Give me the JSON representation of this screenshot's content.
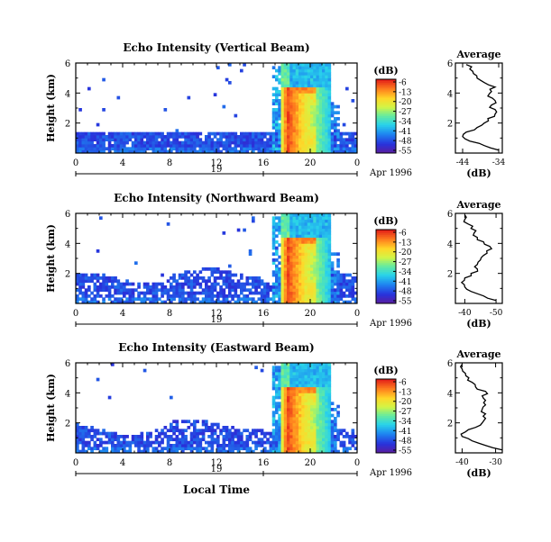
{
  "figure": {
    "date_label": "Apr 1996",
    "day_label": "19",
    "xlabel_bottom": "Local Time",
    "avg_title": "Average",
    "avg_xlabel": "(dB)",
    "colorbar_unit": "(dB)",
    "ylabel": "Height (km)"
  },
  "chart_data": [
    {
      "type": "heatmap",
      "title": "Echo Intensity (Vertical Beam)",
      "xlabel": "",
      "ylabel": "Height (km)",
      "x_ticks": [
        "0",
        "4",
        "8",
        "12",
        "16",
        "20",
        "0"
      ],
      "x_tick_values": [
        0,
        4,
        8,
        12,
        16,
        20,
        24
      ],
      "y_ticks": [
        "2",
        "4",
        "6"
      ],
      "y_tick_values": [
        2,
        4,
        6
      ],
      "xlim": [
        0,
        24
      ],
      "ylim": [
        0,
        6
      ],
      "colorbar": {
        "label": "(dB)",
        "ticks": [
          "-6",
          "-13",
          "-20",
          "-27",
          "-34",
          "-41",
          "-48",
          "-55"
        ],
        "values": [
          -6,
          -13,
          -20,
          -27,
          -34,
          -41,
          -48,
          -55
        ]
      },
      "features": {
        "low_layer_top_km": 1.4,
        "strong_echo_start_h": 17.4,
        "strong_echo_end_h": 21.8,
        "melting_layer_km": 4.2
      },
      "average_profile": {
        "title": "Average",
        "xlabel": "(dB)",
        "x_ticks": [
          "-44",
          "-34"
        ],
        "x_tick_values": [
          -44,
          -34
        ],
        "xlim": [
          -46,
          -33
        ],
        "y_ticks": [
          "2",
          "4",
          "6"
        ],
        "ylim": [
          0,
          6
        ],
        "height_km": [
          0.2,
          0.5,
          0.8,
          1.1,
          1.4,
          1.7,
          2.0,
          2.3,
          2.6,
          2.9,
          3.2,
          3.5,
          3.8,
          4.1,
          4.4,
          4.7,
          5.0,
          5.3,
          5.6,
          5.9
        ],
        "db": [
          -34,
          -38,
          -42,
          -44,
          -43,
          -40,
          -38,
          -37,
          -35,
          -35,
          -36,
          -35,
          -37,
          -36,
          -35,
          -38,
          -40,
          -41,
          -42,
          -43
        ]
      }
    },
    {
      "type": "heatmap",
      "title": "Echo Intensity (Northward Beam)",
      "xlabel": "",
      "ylabel": "Height (km)",
      "x_ticks": [
        "0",
        "4",
        "8",
        "12",
        "16",
        "20",
        "0"
      ],
      "x_tick_values": [
        0,
        4,
        8,
        12,
        16,
        20,
        24
      ],
      "y_ticks": [
        "2",
        "4",
        "6"
      ],
      "y_tick_values": [
        2,
        4,
        6
      ],
      "xlim": [
        0,
        24
      ],
      "ylim": [
        0,
        6
      ],
      "colorbar": {
        "label": "(dB)",
        "ticks": [
          "-6",
          "-13",
          "-20",
          "-27",
          "-34",
          "-41",
          "-48",
          "-55"
        ],
        "values": [
          -6,
          -13,
          -20,
          -27,
          -34,
          -41,
          -48,
          -55
        ]
      },
      "features": {
        "low_layer_top_km": 1.7,
        "strong_echo_start_h": 17.4,
        "strong_echo_end_h": 21.8,
        "melting_layer_km": 4.2
      },
      "average_profile": {
        "title": "Average",
        "xlabel": "(dB)",
        "x_ticks": [
          "-40",
          "-50"
        ],
        "x_tick_values": [
          -40,
          -50
        ],
        "xlim": [
          -37,
          -52
        ],
        "y_ticks": [
          "2",
          "4",
          "6"
        ],
        "ylim": [
          0,
          6
        ],
        "height_km": [
          0.2,
          0.5,
          0.8,
          1.1,
          1.4,
          1.7,
          2.0,
          2.3,
          2.6,
          2.9,
          3.2,
          3.5,
          3.8,
          4.1,
          4.4,
          4.7,
          5.0,
          5.3,
          5.6,
          5.9
        ],
        "db": [
          -50,
          -46,
          -42,
          -40,
          -39,
          -40,
          -42,
          -44,
          -44,
          -45,
          -46,
          -47,
          -48,
          -46,
          -44,
          -43,
          -42,
          -41,
          -40,
          -40
        ]
      }
    },
    {
      "type": "heatmap",
      "title": "Echo Intensity (Eastward Beam)",
      "xlabel": "Local Time",
      "ylabel": "Height (km)",
      "x_ticks": [
        "0",
        "4",
        "8",
        "12",
        "16",
        "20",
        "0"
      ],
      "x_tick_values": [
        0,
        4,
        8,
        12,
        16,
        20,
        24
      ],
      "y_ticks": [
        "2",
        "4",
        "6"
      ],
      "y_tick_values": [
        2,
        4,
        6
      ],
      "xlim": [
        0,
        24
      ],
      "ylim": [
        0,
        6
      ],
      "colorbar": {
        "label": "(dB)",
        "ticks": [
          "-6",
          "-13",
          "-20",
          "-27",
          "-34",
          "-41",
          "-48",
          "-55"
        ],
        "values": [
          -6,
          -13,
          -20,
          -27,
          -34,
          -41,
          -48,
          -55
        ]
      },
      "features": {
        "low_layer_top_km": 1.6,
        "strong_echo_start_h": 17.4,
        "strong_echo_end_h": 21.8,
        "melting_layer_km": 4.2
      },
      "average_profile": {
        "title": "Average",
        "xlabel": "(dB)",
        "x_ticks": [
          "-40",
          "-30"
        ],
        "x_tick_values": [
          -40,
          -30
        ],
        "xlim": [
          -42,
          -28
        ],
        "y_ticks": [
          "2",
          "4",
          "6"
        ],
        "ylim": [
          0,
          6
        ],
        "height_km": [
          0.2,
          0.5,
          0.8,
          1.1,
          1.4,
          1.7,
          2.0,
          2.3,
          2.6,
          2.9,
          3.2,
          3.5,
          3.8,
          4.1,
          4.4,
          4.7,
          5.0,
          5.3,
          5.6,
          5.9
        ],
        "db": [
          -28,
          -33,
          -37,
          -40,
          -39,
          -36,
          -34,
          -33,
          -33,
          -34,
          -33,
          -33,
          -34,
          -33,
          -36,
          -37,
          -38,
          -39,
          -40,
          -40
        ]
      }
    }
  ]
}
